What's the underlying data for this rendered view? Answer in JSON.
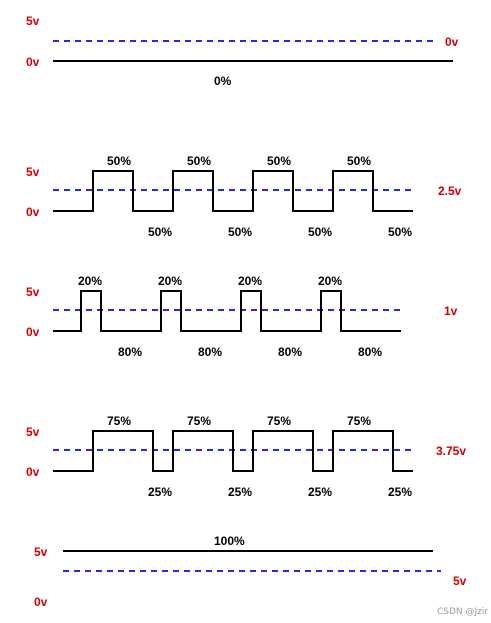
{
  "diagram": {
    "panels": [
      {
        "id": "duty-0",
        "high_label": "5v",
        "low_label": "0v",
        "average_label": "0v",
        "duty_cycle": 0,
        "high_duty_label": "0%",
        "low_duty_label": ""
      },
      {
        "id": "duty-50",
        "high_label": "5v",
        "low_label": "0v",
        "average_label": "2.5v",
        "duty_cycle": 0.5,
        "high_duty_label": "50%",
        "low_duty_label": "50%"
      },
      {
        "id": "duty-20",
        "high_label": "5v",
        "low_label": "0v",
        "average_label": "1v",
        "duty_cycle": 0.2,
        "high_duty_label": "20%",
        "low_duty_label": "80%"
      },
      {
        "id": "duty-75",
        "high_label": "5v",
        "low_label": "0v",
        "average_label": "3.75v",
        "duty_cycle": 0.75,
        "high_duty_label": "75%",
        "low_duty_label": "25%"
      },
      {
        "id": "duty-100",
        "high_label": "5v",
        "low_label": "0v",
        "average_label": "5v",
        "duty_cycle": 1,
        "high_duty_label": "100%",
        "low_duty_label": ""
      }
    ],
    "watermark": "CSDN @Jzir",
    "colors": {
      "signal": "#000000",
      "average_line": "#2a2ad6",
      "voltage_labels": "#d40000"
    }
  }
}
